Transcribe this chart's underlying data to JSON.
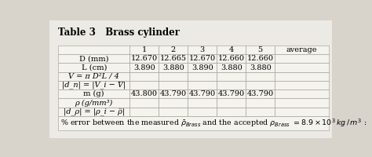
{
  "title": "Table 3   Brass cylinder",
  "col_headers": [
    "",
    "1",
    "2",
    "3",
    "4",
    "5",
    "average"
  ],
  "rows": [
    [
      "D (mm)",
      "12.670",
      "12.665",
      "12.670",
      "12.660",
      "12.660",
      ""
    ],
    [
      "L (cm)",
      "3.890",
      "3.880",
      "3.890",
      "3.880",
      "3.880",
      ""
    ],
    [
      "V = π D²L / 4",
      "",
      "",
      "",
      "",
      "",
      ""
    ],
    [
      "|d_n| = |V_i − V̅|",
      "",
      "",
      "",
      "",
      "",
      ""
    ],
    [
      "m (g)",
      "43.800",
      "43.790",
      "43.790",
      "43.790",
      "43.790",
      ""
    ],
    [
      "ρ (g/mm³)",
      "",
      "",
      "",
      "",
      "",
      ""
    ],
    [
      "|d_ρ| = |ρ_i − ρ̅|",
      "",
      "",
      "",
      "",
      "",
      ""
    ]
  ],
  "footer": "% error between the measured $\\bar{\\rho}_{Brass}$ and the accepted $\\rho_{Brass}$ $= 8.9\\times10^3\\,kg\\,/\\,m^3$ :",
  "bg_color": "#d8d4cc",
  "paper_color": "#eceae4",
  "table_bg": "#f5f3ee",
  "border_color": "#999990",
  "title_fontsize": 8.5,
  "cell_fontsize": 7.0,
  "footer_fontsize": 6.8
}
